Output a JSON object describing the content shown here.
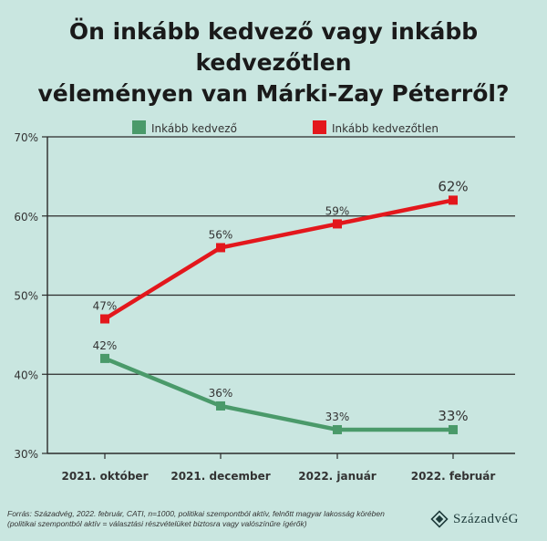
{
  "title_line1": "Ön inkább kedvező vagy inkább kedvezőtlen",
  "title_line2": "véleményen van Márki-Zay Péterről?",
  "footnote_line1": "Forrás: Századvég, 2022. február, CATI, n=1000, politikai szempontból aktív, felnőtt magyar lakosság körében",
  "footnote_line2": "(politikai szempontból aktív = választási részvételüket biztosra vagy valószínűre ígérők)",
  "logo_text": "SzázadvéG",
  "logo_icon": "diamond-emblem-icon",
  "chart_data": {
    "type": "line",
    "categories": [
      "2021. október",
      "2021. december",
      "2022. január",
      "2022. február"
    ],
    "series": [
      {
        "name": "Inkább kedvező",
        "values": [
          42,
          36,
          33,
          33
        ],
        "labels": [
          "42%",
          "36%",
          "33%",
          "33%"
        ],
        "color": "#4a9a6a"
      },
      {
        "name": "Inkább kedvezőtlen",
        "values": [
          47,
          56,
          59,
          62
        ],
        "labels": [
          "47%",
          "56%",
          "59%",
          "62%"
        ],
        "color": "#e3171c"
      }
    ],
    "yticks": [
      30,
      40,
      50,
      60,
      70
    ],
    "ytick_labels": [
      "30%",
      "40%",
      "50%",
      "60%",
      "70%"
    ],
    "ylim": [
      30,
      70
    ],
    "grid": true,
    "legend": "top"
  }
}
